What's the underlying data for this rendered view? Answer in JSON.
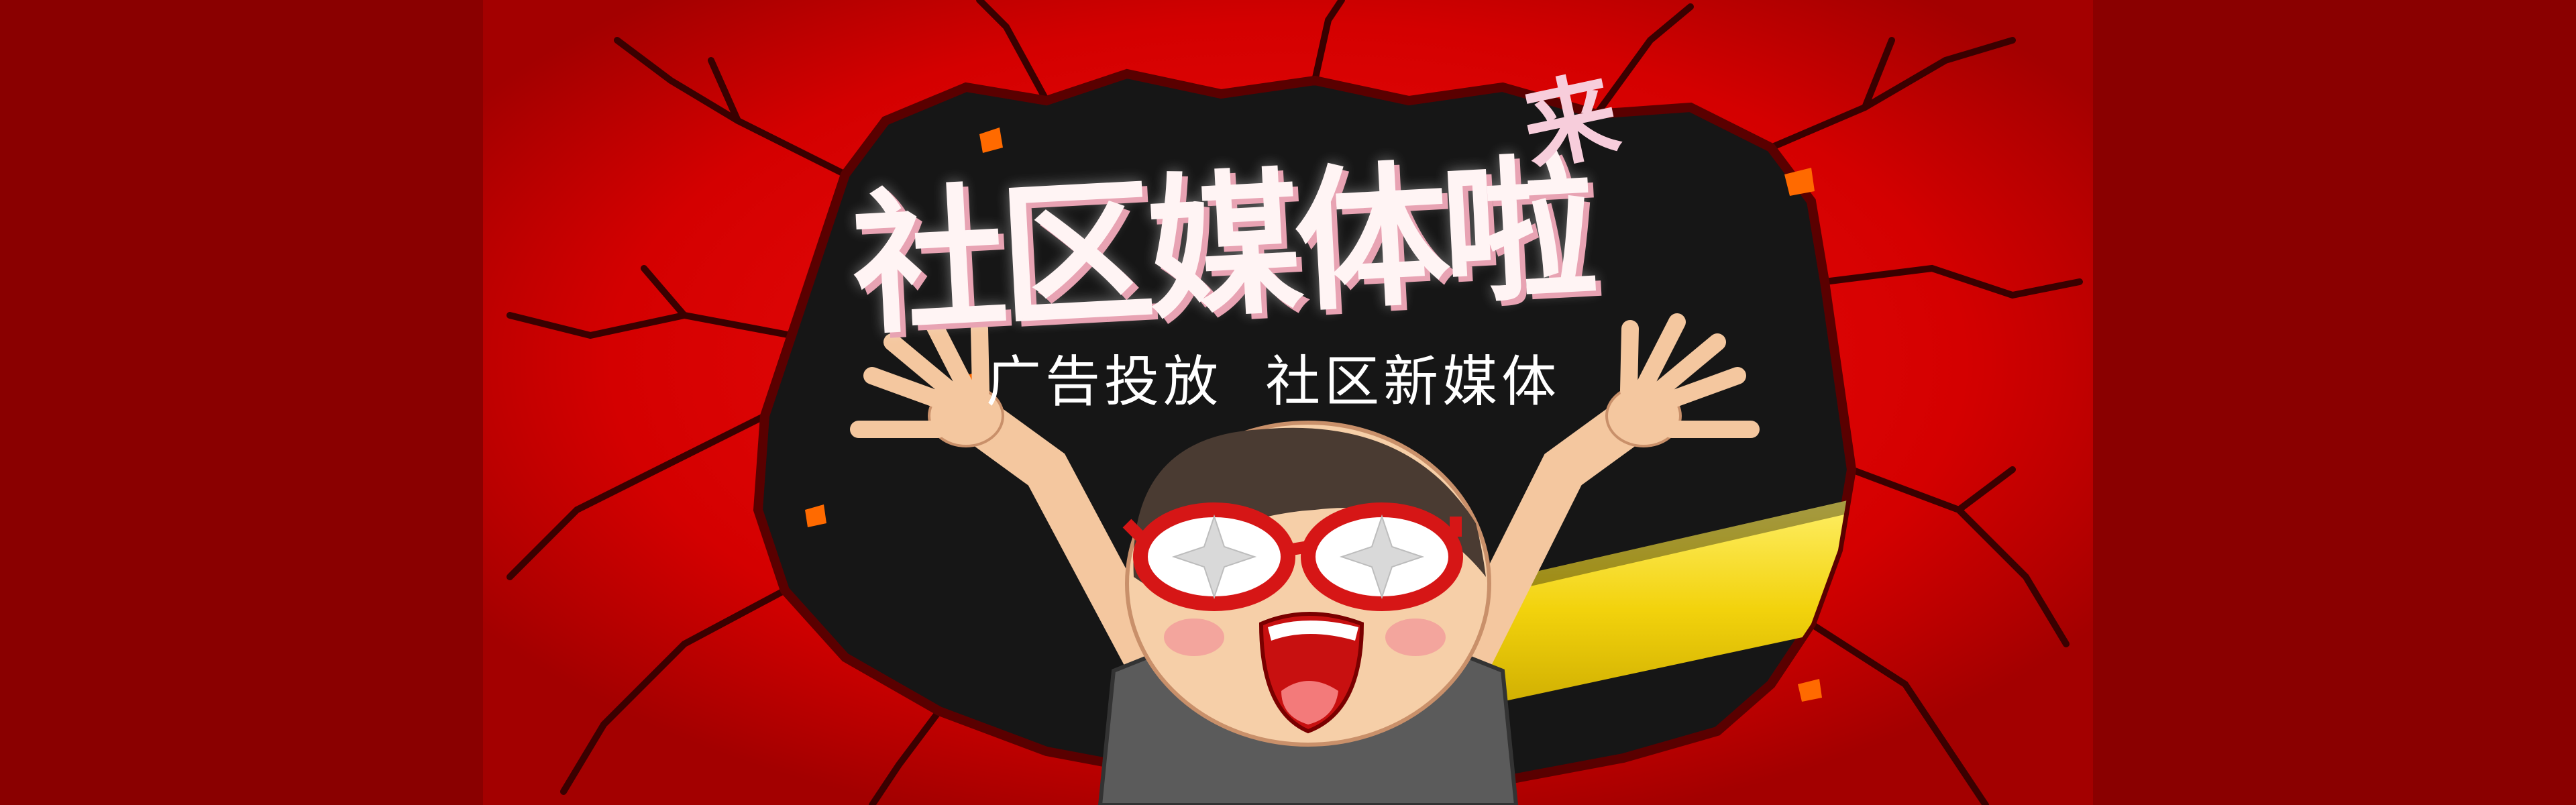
{
  "banner": {
    "title_main": "社区媒体啦",
    "title_superscript": "来",
    "subtitle": "广告投放  社区新媒体"
  },
  "colors": {
    "background": "#e00000",
    "side_panel": "#8a0000",
    "hole": "#161616",
    "stripe": "#f2d20c",
    "title_fill": "#fff4f4",
    "title_shadow": "#e8a3b3",
    "glasses": "#d61616"
  },
  "graphics": {
    "illustration": "cartoon-character-with-glasses-icon",
    "hole": "cracked-wall-hole-icon"
  }
}
